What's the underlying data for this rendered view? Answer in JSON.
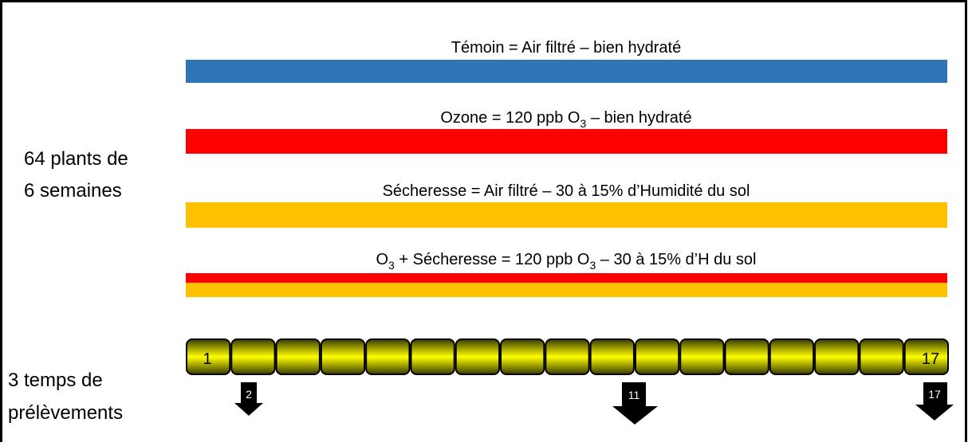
{
  "treatments": [
    {
      "parts": [
        "Témoin = Air filtré – bien hydraté"
      ]
    },
    {
      "parts": [
        "Ozone = 120 ppb  O",
        "3",
        " – bien hydraté"
      ]
    },
    {
      "parts": [
        "Sécheresse = Air filtré – 30 à 15% d’Humidité du sol"
      ]
    },
    {
      "parts": [
        "O",
        "3",
        " + Sécheresse = 120 ppb O",
        "3",
        " – 30 à 15% d’H du sol"
      ]
    }
  ],
  "left_labels": {
    "plants": [
      "64 plants de",
      "6 semaines"
    ],
    "sampling": [
      "3 temps de",
      "prélèvements"
    ]
  },
  "timeline": {
    "start": "1",
    "end": "17"
  },
  "samples": [
    "2",
    "11",
    "17"
  ]
}
